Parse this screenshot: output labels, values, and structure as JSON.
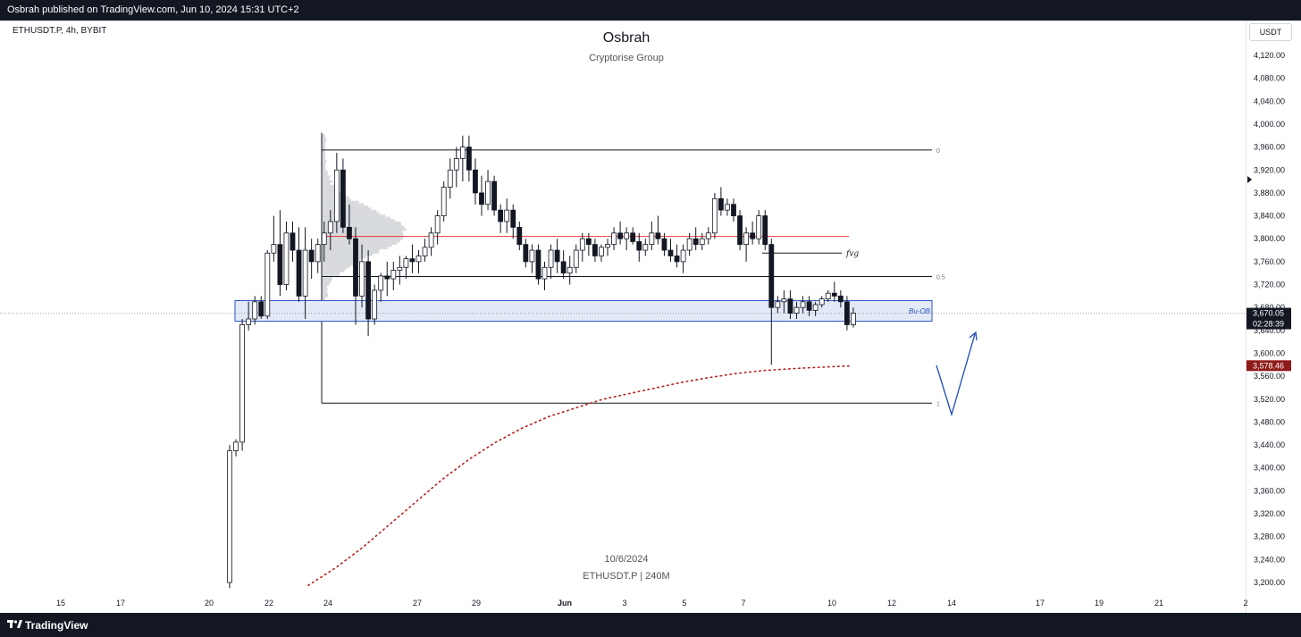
{
  "header": {
    "published": "Osbrah published on TradingView.com, Jun 10, 2024 15:31 UTC+2"
  },
  "chart_header": {
    "symbol_line": "ETHUSDT.P, 4h, BYBIT",
    "author": "Osbrah",
    "group": "Cryptorise Group",
    "currency_button": "USDT"
  },
  "watermark": {
    "date": "10/6/2024",
    "symbol_tf": "ETHUSDT.P | 240M"
  },
  "footer": {
    "brand": "TradingView"
  },
  "chart_data": {
    "type": "candlestick",
    "title": "Osbrah",
    "subtitle": "Cryptorise Group",
    "symbol": "ETHUSDT.P",
    "timeframe": "4h",
    "exchange": "BYBIT",
    "x_tick_labels": [
      "15",
      "17",
      "20",
      "22",
      "24",
      "27",
      "29",
      "Jun",
      "3",
      "5",
      "7",
      "10",
      "12",
      "14",
      "17",
      "19",
      "21",
      "2"
    ],
    "y_tick_labels": [
      "4,120.00",
      "4,080.00",
      "4,040.00",
      "4,000.00",
      "3,960.00",
      "3,920.00",
      "3,880.00",
      "3,840.00",
      "3,800.00",
      "3,760.00",
      "3,720.00",
      "3,680.00",
      "3,640.00",
      "3,600.00",
      "3,560.00",
      "3,520.00",
      "3,480.00",
      "3,440.00",
      "3,400.00",
      "3,360.00",
      "3,320.00",
      "3,280.00",
      "3,240.00",
      "3,200.00"
    ],
    "ylim": [
      3190,
      4125
    ],
    "price_labels": [
      {
        "value": 3670.05,
        "text": "3,670.05",
        "sub": "02:28:39",
        "color": "#131722"
      },
      {
        "value": 3578.46,
        "text": "3,578.46",
        "sub": "",
        "color": "#8f1a1a"
      }
    ],
    "fib_levels": [
      {
        "label": "0",
        "price": 3955
      },
      {
        "label": "0.5",
        "price": 3734
      },
      {
        "label": "1",
        "price": 3513
      }
    ],
    "annotations": [
      {
        "text": "fvg",
        "price": 3775
      },
      {
        "text": "Bu-OB",
        "price_low": 3656,
        "price_high": 3692
      }
    ],
    "red_level": 3804,
    "ohlc": [
      [
        3200,
        3440,
        3190,
        3430
      ],
      [
        3430,
        3450,
        3420,
        3445
      ],
      [
        3445,
        3660,
        3430,
        3650
      ],
      [
        3650,
        3690,
        3640,
        3660
      ],
      [
        3660,
        3700,
        3650,
        3690
      ],
      [
        3690,
        3700,
        3660,
        3665
      ],
      [
        3665,
        3780,
        3660,
        3775
      ],
      [
        3775,
        3840,
        3760,
        3790
      ],
      [
        3790,
        3850,
        3700,
        3720
      ],
      [
        3720,
        3830,
        3710,
        3810
      ],
      [
        3810,
        3830,
        3760,
        3780
      ],
      [
        3780,
        3820,
        3690,
        3700
      ],
      [
        3700,
        3820,
        3660,
        3780
      ],
      [
        3780,
        3800,
        3730,
        3760
      ],
      [
        3760,
        3800,
        3740,
        3790
      ],
      [
        3790,
        3830,
        3760,
        3810
      ],
      [
        3810,
        3850,
        3780,
        3830
      ],
      [
        3830,
        3950,
        3810,
        3920
      ],
      [
        3920,
        3940,
        3810,
        3820
      ],
      [
        3820,
        3860,
        3790,
        3800
      ],
      [
        3800,
        3820,
        3650,
        3700
      ],
      [
        3700,
        3790,
        3680,
        3760
      ],
      [
        3760,
        3780,
        3630,
        3660
      ],
      [
        3660,
        3720,
        3650,
        3710
      ],
      [
        3710,
        3740,
        3690,
        3735
      ],
      [
        3735,
        3760,
        3700,
        3730
      ],
      [
        3730,
        3760,
        3710,
        3745
      ],
      [
        3745,
        3770,
        3720,
        3750
      ],
      [
        3750,
        3770,
        3730,
        3765
      ],
      [
        3765,
        3790,
        3740,
        3760
      ],
      [
        3760,
        3780,
        3740,
        3770
      ],
      [
        3770,
        3800,
        3760,
        3785
      ],
      [
        3785,
        3820,
        3770,
        3810
      ],
      [
        3810,
        3850,
        3790,
        3840
      ],
      [
        3840,
        3900,
        3830,
        3890
      ],
      [
        3890,
        3940,
        3870,
        3920
      ],
      [
        3920,
        3960,
        3890,
        3940
      ],
      [
        3940,
        3980,
        3900,
        3960
      ],
      [
        3960,
        3980,
        3900,
        3920
      ],
      [
        3920,
        3940,
        3860,
        3880
      ],
      [
        3880,
        3910,
        3840,
        3860
      ],
      [
        3860,
        3920,
        3850,
        3900
      ],
      [
        3900,
        3910,
        3840,
        3850
      ],
      [
        3850,
        3860,
        3810,
        3830
      ],
      [
        3830,
        3870,
        3810,
        3850
      ],
      [
        3850,
        3860,
        3800,
        3820
      ],
      [
        3820,
        3830,
        3780,
        3790
      ],
      [
        3790,
        3800,
        3750,
        3760
      ],
      [
        3760,
        3790,
        3740,
        3780
      ],
      [
        3780,
        3790,
        3720,
        3730
      ],
      [
        3730,
        3760,
        3710,
        3750
      ],
      [
        3750,
        3790,
        3730,
        3780
      ],
      [
        3780,
        3800,
        3740,
        3760
      ],
      [
        3760,
        3780,
        3730,
        3740
      ],
      [
        3740,
        3770,
        3720,
        3750
      ],
      [
        3750,
        3790,
        3740,
        3780
      ],
      [
        3780,
        3810,
        3760,
        3800
      ],
      [
        3800,
        3810,
        3770,
        3790
      ],
      [
        3790,
        3800,
        3760,
        3770
      ],
      [
        3770,
        3790,
        3760,
        3785
      ],
      [
        3785,
        3800,
        3770,
        3790
      ],
      [
        3790,
        3820,
        3780,
        3810
      ],
      [
        3810,
        3830,
        3790,
        3800
      ],
      [
        3800,
        3820,
        3780,
        3810
      ],
      [
        3810,
        3820,
        3790,
        3795
      ],
      [
        3795,
        3810,
        3760,
        3780
      ],
      [
        3780,
        3800,
        3770,
        3790
      ],
      [
        3790,
        3830,
        3780,
        3810
      ],
      [
        3810,
        3840,
        3790,
        3800
      ],
      [
        3800,
        3810,
        3770,
        3780
      ],
      [
        3780,
        3800,
        3760,
        3770
      ],
      [
        3770,
        3790,
        3750,
        3760
      ],
      [
        3760,
        3790,
        3740,
        3780
      ],
      [
        3780,
        3810,
        3770,
        3800
      ],
      [
        3800,
        3820,
        3780,
        3790
      ],
      [
        3790,
        3810,
        3780,
        3800
      ],
      [
        3800,
        3820,
        3790,
        3810
      ],
      [
        3810,
        3880,
        3800,
        3870
      ],
      [
        3870,
        3890,
        3840,
        3850
      ],
      [
        3850,
        3870,
        3840,
        3860
      ],
      [
        3860,
        3870,
        3830,
        3840
      ],
      [
        3840,
        3850,
        3780,
        3790
      ],
      [
        3790,
        3820,
        3760,
        3810
      ],
      [
        3810,
        3830,
        3790,
        3800
      ],
      [
        3800,
        3850,
        3790,
        3840
      ],
      [
        3840,
        3850,
        3780,
        3790
      ],
      [
        3790,
        3800,
        3580,
        3680
      ],
      [
        3680,
        3700,
        3670,
        3690
      ],
      [
        3690,
        3710,
        3670,
        3695
      ],
      [
        3695,
        3710,
        3660,
        3670
      ],
      [
        3670,
        3690,
        3660,
        3680
      ],
      [
        3680,
        3700,
        3670,
        3690
      ],
      [
        3690,
        3700,
        3665,
        3675
      ],
      [
        3675,
        3690,
        3665,
        3685
      ],
      [
        3685,
        3700,
        3680,
        3695
      ],
      [
        3695,
        3710,
        3690,
        3705
      ],
      [
        3705,
        3725,
        3690,
        3700
      ],
      [
        3700,
        3710,
        3680,
        3690
      ],
      [
        3690,
        3700,
        3640,
        3650
      ],
      [
        3650,
        3680,
        3645,
        3670
      ]
    ],
    "moving_average": [
      [
        3125,
        3195
      ],
      [
        3150,
        3225
      ],
      [
        3175,
        3260
      ],
      [
        3200,
        3300
      ],
      [
        3225,
        3340
      ],
      [
        3250,
        3380
      ],
      [
        3275,
        3415
      ],
      [
        3300,
        3445
      ],
      [
        3325,
        3470
      ],
      [
        3350,
        3490
      ],
      [
        3375,
        3505
      ],
      [
        3400,
        3520
      ],
      [
        3425,
        3530
      ],
      [
        3450,
        3540
      ],
      [
        3475,
        3550
      ],
      [
        3500,
        3558
      ],
      [
        3525,
        3565
      ],
      [
        3550,
        3570
      ],
      [
        3570,
        3574
      ],
      [
        3585,
        3578
      ]
    ]
  },
  "colors": {
    "bull": "#ffffff",
    "bear": "#131722",
    "fib": "#131722",
    "red_level": "#e53935",
    "zone_fill": "#e3e9f7",
    "zone_stroke": "#2a56c6",
    "arrow": "#1e4bb5",
    "ma": "#b71c1c"
  },
  "icons": [
    "tradingview-logo-icon",
    "price-scale-marker-icon"
  ]
}
